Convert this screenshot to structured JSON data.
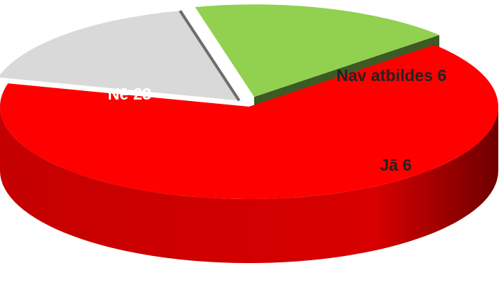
{
  "chart_data": {
    "type": "pie",
    "style": "3d-exploded",
    "slices": [
      {
        "label": "Nē",
        "value": 23,
        "color": "#ff0000",
        "side_color": "#b00000",
        "label_color": "#ffffff"
      },
      {
        "label": "Nav atbildes",
        "value": 6,
        "color": "#d9d9d9",
        "side_color": "#8c8c8c",
        "label_color": "#222222"
      },
      {
        "label": "Jā",
        "value": 6,
        "color": "#92d050",
        "side_color": "#3c5a23",
        "label_color": "#222222"
      }
    ],
    "data_labels": [
      "Nē 23",
      "Nav atbildes 6",
      "Jā 6"
    ]
  }
}
